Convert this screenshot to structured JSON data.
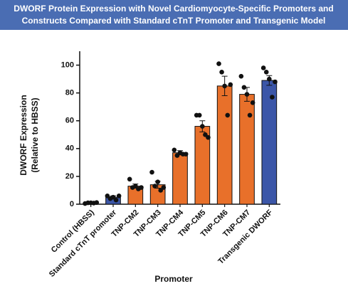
{
  "chart_data": {
    "type": "bar",
    "title": [
      "DWORF Protein Expression with Novel Cardiomyocyte-Specific Promoters and",
      "Constructs Compared with Standard cTnT Promoter and Transgenic Model"
    ],
    "y_label": [
      "DWORF Expression",
      "(Relative to HBSS)"
    ],
    "x_label": "Promoter",
    "categories": [
      "Control (HBSS)",
      "Standard cTnT promoter",
      "TNP-CM2",
      "TNP-CM3",
      "TNP-CM4",
      "TNP-CM5",
      "TNP-CM6",
      "TNP-CM7",
      "Transgenic DWORF"
    ],
    "values": [
      1,
      5,
      13,
      14,
      37,
      56,
      85,
      79,
      89
    ],
    "errors": [
      0.3,
      1,
      1.5,
      2.5,
      1.5,
      4,
      7,
      5,
      3.5
    ],
    "colors": [
      "#3b56a8",
      "#3b56a8",
      "#e8702a",
      "#e8702a",
      "#e8702a",
      "#e8702a",
      "#e8702a",
      "#e8702a",
      "#3b56a8"
    ],
    "points": [
      [
        0.5,
        1,
        1,
        0.8,
        1.2
      ],
      [
        6,
        4,
        5,
        3,
        6
      ],
      [
        18,
        12,
        13,
        11,
        12
      ],
      [
        23,
        13,
        16,
        10,
        12
      ],
      [
        39,
        35,
        37,
        36,
        36
      ],
      [
        64,
        64,
        56,
        50,
        48
      ],
      [
        101,
        95,
        85,
        64,
        86
      ],
      [
        92,
        84,
        79,
        64,
        73
      ],
      [
        98,
        95,
        90,
        77,
        88
      ]
    ],
    "ylim": [
      0,
      110
    ],
    "yticks": [
      0,
      20,
      40,
      60,
      80,
      100
    ]
  }
}
